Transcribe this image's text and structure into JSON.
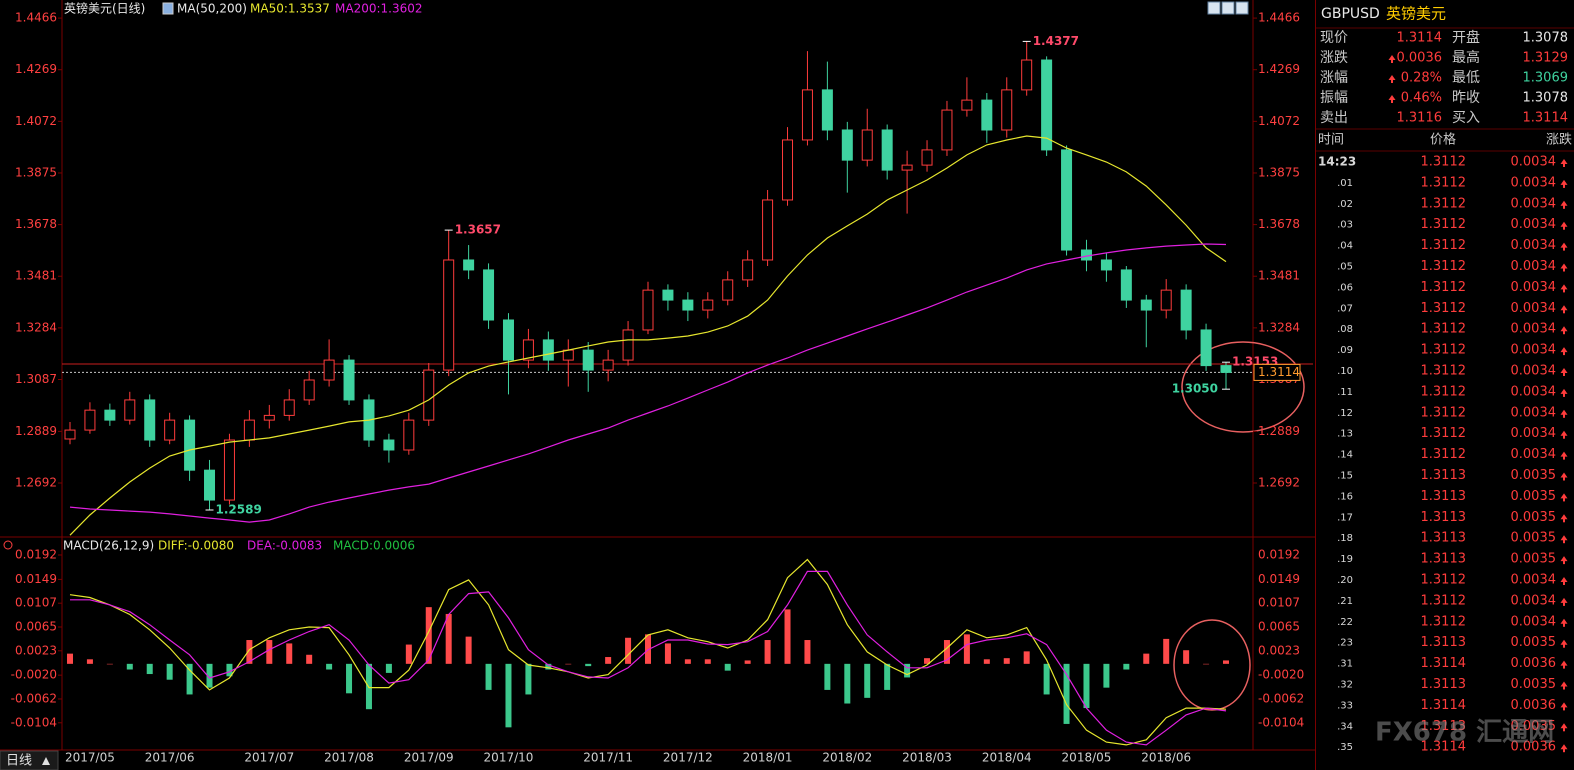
{
  "chart_data": [
    {
      "type": "candlestick",
      "title": "英镑美元(日线)",
      "indicator": "MA(50,200)",
      "categories": [
        null,
        "2017/05",
        null,
        null,
        null,
        "2017/06",
        null,
        null,
        null,
        null,
        "2017/07",
        null,
        null,
        null,
        "2017/08",
        null,
        null,
        null,
        "2017/09",
        null,
        null,
        null,
        "2017/10",
        null,
        null,
        null,
        null,
        "2017/11",
        null,
        null,
        null,
        "2017/12",
        null,
        null,
        null,
        "2018/01",
        null,
        null,
        null,
        "2018/02",
        null,
        null,
        null,
        "2018/03",
        null,
        null,
        null,
        "2018/04",
        null,
        null,
        null,
        "2018/05",
        null,
        null,
        null,
        "2018/06",
        null,
        null,
        null
      ],
      "open": [
        1.286,
        1.2894,
        1.297,
        1.2932,
        1.3009,
        1.2856,
        1.2932,
        1.2741,
        1.2627,
        1.2856,
        1.2932,
        1.295,
        1.3009,
        1.3085,
        1.3161,
        1.3009,
        1.2856,
        1.2818,
        1.2932,
        1.3123,
        1.3543,
        1.3505,
        1.3314,
        1.3161,
        1.3238,
        1.3161,
        1.3199,
        1.3123,
        1.3161,
        1.3276,
        1.3428,
        1.339,
        1.3352,
        1.339,
        1.3467,
        1.3543,
        1.3772,
        1.4001,
        1.4192,
        1.4039,
        1.3924,
        1.4039,
        1.3886,
        1.3905,
        1.3963,
        1.4115,
        1.4153,
        1.4039,
        1.4192,
        1.4306,
        1.3963,
        1.3581,
        1.3543,
        1.3505,
        1.339,
        1.3352,
        1.3428,
        1.3276,
        1.314
      ],
      "high": [
        1.2925,
        1.3,
        1.2995,
        1.304,
        1.303,
        1.296,
        1.295,
        1.278,
        1.288,
        1.297,
        1.299,
        1.305,
        1.312,
        1.324,
        1.318,
        1.303,
        1.288,
        1.296,
        1.315,
        1.3657,
        1.36,
        1.353,
        1.334,
        1.328,
        1.327,
        1.324,
        1.323,
        1.32,
        1.331,
        1.346,
        1.345,
        1.342,
        1.342,
        1.35,
        1.358,
        1.381,
        1.405,
        1.434,
        1.43,
        1.407,
        1.412,
        1.406,
        1.396,
        1.4,
        1.415,
        1.424,
        1.418,
        1.424,
        1.4377,
        1.432,
        1.398,
        1.362,
        1.357,
        1.352,
        1.341,
        1.347,
        1.345,
        1.33,
        1.3153
      ],
      "low": [
        1.284,
        1.288,
        1.291,
        1.2915,
        1.283,
        1.284,
        1.27,
        1.2589,
        1.261,
        1.283,
        1.29,
        1.293,
        1.299,
        1.306,
        1.299,
        1.283,
        1.277,
        1.28,
        1.291,
        1.31,
        1.347,
        1.328,
        1.303,
        1.313,
        1.312,
        1.306,
        1.304,
        1.308,
        1.314,
        1.326,
        1.335,
        1.331,
        1.332,
        1.337,
        1.344,
        1.352,
        1.375,
        1.398,
        1.4,
        1.38,
        1.39,
        1.385,
        1.372,
        1.388,
        1.394,
        1.409,
        1.399,
        1.401,
        1.417,
        1.394,
        1.356,
        1.35,
        1.346,
        1.336,
        1.321,
        1.332,
        1.324,
        1.312,
        1.305
      ],
      "close": [
        1.2894,
        1.297,
        1.2932,
        1.3009,
        1.2856,
        1.2932,
        1.2741,
        1.2627,
        1.2856,
        1.2932,
        1.295,
        1.3009,
        1.3085,
        1.3161,
        1.3009,
        1.2856,
        1.2818,
        1.2932,
        1.3123,
        1.3543,
        1.3505,
        1.3314,
        1.3161,
        1.3238,
        1.3161,
        1.3199,
        1.3123,
        1.3161,
        1.3276,
        1.3428,
        1.339,
        1.3352,
        1.339,
        1.3467,
        1.3543,
        1.3772,
        1.4001,
        1.4192,
        1.4039,
        1.3924,
        1.4039,
        1.3886,
        1.3905,
        1.3963,
        1.4115,
        1.4153,
        1.4039,
        1.4192,
        1.4306,
        1.3963,
        1.3581,
        1.3543,
        1.3505,
        1.339,
        1.3352,
        1.3428,
        1.3276,
        1.314,
        1.3114
      ],
      "high_labels": [
        null,
        null,
        null,
        null,
        null,
        null,
        null,
        null,
        null,
        null,
        null,
        null,
        null,
        null,
        null,
        null,
        null,
        null,
        null,
        "1.3657",
        null,
        null,
        null,
        null,
        null,
        null,
        null,
        null,
        null,
        null,
        null,
        null,
        null,
        null,
        null,
        null,
        null,
        null,
        null,
        null,
        null,
        null,
        null,
        null,
        null,
        null,
        null,
        null,
        "1.4377",
        null,
        null,
        null,
        null,
        null,
        null,
        null,
        null,
        null,
        "1.3153"
      ],
      "low_labels": [
        null,
        null,
        null,
        null,
        null,
        null,
        null,
        "1.2589",
        null,
        null,
        null,
        null,
        null,
        null,
        null,
        null,
        null,
        null,
        null,
        null,
        null,
        null,
        null,
        null,
        null,
        null,
        null,
        null,
        null,
        null,
        null,
        null,
        null,
        null,
        null,
        null,
        null,
        null,
        null,
        null,
        null,
        null,
        null,
        null,
        null,
        null,
        null,
        null,
        null,
        null,
        null,
        null,
        null,
        null,
        null,
        null,
        null,
        null,
        "1.3050"
      ],
      "last_label": "1.3114",
      "up_color": "#ff3c3c",
      "down_color": "#3fd3a0",
      "reference_line": {
        "value": 1.3146,
        "color": "#c81e1e"
      },
      "series": [
        {
          "name": "MA50:1.3537",
          "color": "#e6e62e",
          "values": [
            1.2493,
            1.257,
            1.2635,
            1.2696,
            1.2749,
            1.2795,
            1.2818,
            1.2833,
            1.2848,
            1.2856,
            1.2864,
            1.2879,
            1.2894,
            1.2909,
            1.2925,
            1.2932,
            1.2948,
            1.297,
            1.3009,
            1.3066,
            1.3112,
            1.3138,
            1.3154,
            1.3169,
            1.3184,
            1.3199,
            1.3215,
            1.323,
            1.3238,
            1.3238,
            1.3245,
            1.3253,
            1.3268,
            1.3291,
            1.3329,
            1.339,
            1.3482,
            1.3562,
            1.3627,
            1.3673,
            1.3718,
            1.3772,
            1.381,
            1.3848,
            1.3894,
            1.3944,
            1.3982,
            1.4001,
            1.4016,
            1.4008,
            1.397,
            1.3944,
            1.3917,
            1.3879,
            1.3825,
            1.3753,
            1.3676,
            1.3589,
            1.3537
          ]
        },
        {
          "name": "MA200:1.3602",
          "color": "#e020e0",
          "values": [
            1.26,
            1.2593,
            1.2589,
            1.2585,
            1.2581,
            1.2574,
            1.2566,
            1.2558,
            1.2551,
            1.2543,
            1.2551,
            1.2574,
            1.26,
            1.2619,
            1.2635,
            1.265,
            1.2665,
            1.2677,
            1.2688,
            1.2711,
            1.2734,
            1.2757,
            1.278,
            1.2803,
            1.2829,
            1.2856,
            1.2879,
            1.2902,
            1.2932,
            1.2959,
            1.2986,
            1.3016,
            1.3047,
            1.3077,
            1.3112,
            1.3142,
            1.3169,
            1.3199,
            1.3226,
            1.3253,
            1.328,
            1.3306,
            1.3333,
            1.336,
            1.339,
            1.3421,
            1.3447,
            1.3474,
            1.3505,
            1.3528,
            1.3543,
            1.3558,
            1.357,
            1.3581,
            1.3589,
            1.3596,
            1.36,
            1.3604,
            1.3602
          ]
        }
      ],
      "ylim": [
        1.2486,
        1.4535
      ],
      "yticks": [
        1.4466,
        1.4269,
        1.4072,
        1.3875,
        1.3678,
        1.3481,
        1.3284,
        1.3087,
        1.2889,
        1.2692
      ]
    },
    {
      "type": "macd",
      "title": "MACD(26,12,9)",
      "up_color": "#ff4a4a",
      "down_color": "#3cc88c",
      "series": [
        {
          "name": "DIFF:-0.0080",
          "color": "#e6e62e",
          "values": [
            0.0122,
            0.0117,
            0.0104,
            0.0087,
            0.006,
            0.0028,
            -0.0011,
            -0.0046,
            -0.0025,
            0.0025,
            0.0046,
            0.006,
            0.0065,
            0.0064,
            0.0016,
            -0.0042,
            -0.0042,
            -0.0011,
            0.0057,
            0.0131,
            0.0148,
            0.0104,
            0.0025,
            -0.0002,
            -0.0007,
            -0.0014,
            -0.0025,
            -0.0019,
            0.0016,
            0.0051,
            0.006,
            0.0046,
            0.0039,
            0.0028,
            0.0042,
            0.0078,
            0.0152,
            0.0184,
            0.014,
            0.0069,
            0.0021,
            -0.0002,
            -0.0019,
            -0.0002,
            0.0028,
            0.006,
            0.0046,
            0.0051,
            0.0064,
            0.0007,
            -0.0072,
            -0.0117,
            -0.0138,
            -0.0143,
            -0.0134,
            -0.0095,
            -0.0078,
            -0.0078,
            -0.008
          ]
        },
        {
          "name": "DEA:-0.0083",
          "color": "#e020e0",
          "values": [
            0.0113,
            0.0113,
            0.0104,
            0.0092,
            0.0069,
            0.0042,
            0.0016,
            -0.0025,
            -0.0014,
            0.0004,
            0.0025,
            0.0042,
            0.0057,
            0.0069,
            0.0042,
            -0.0002,
            -0.0034,
            -0.0028,
            0.0007,
            0.0087,
            0.0124,
            0.0127,
            0.0081,
            0.0025,
            -0.0002,
            -0.0014,
            -0.0023,
            -0.0025,
            -0.0007,
            0.0025,
            0.0042,
            0.0042,
            0.0035,
            0.0034,
            0.0039,
            0.0057,
            0.0104,
            0.0163,
            0.0163,
            0.0104,
            0.0051,
            0.0021,
            -0.0007,
            -0.0007,
            0.0007,
            0.0034,
            0.0042,
            0.0046,
            0.0053,
            0.0034,
            -0.0019,
            -0.0078,
            -0.0117,
            -0.0138,
            -0.0143,
            -0.0117,
            -0.009,
            -0.0078,
            -0.0083
          ]
        },
        {
          "name": "MACD:0.0006",
          "color": "#20c040",
          "values": [
            0.0018,
            0.0008,
            0,
            -0.001,
            -0.0018,
            -0.0028,
            -0.0054,
            -0.0042,
            -0.0022,
            0.0042,
            0.0042,
            0.0036,
            0.0016,
            -0.001,
            -0.0052,
            -0.008,
            -0.0016,
            0.0034,
            0.01,
            0.0088,
            0.0048,
            -0.0046,
            -0.0112,
            -0.0054,
            -0.001,
            0,
            -0.0004,
            0.0012,
            0.0046,
            0.0052,
            0.0036,
            0.0008,
            0.0008,
            -0.0012,
            0.0006,
            0.0042,
            0.0096,
            0.0042,
            -0.0046,
            -0.007,
            -0.006,
            -0.0046,
            -0.0024,
            0.001,
            0.0042,
            0.0052,
            0.0008,
            0.001,
            0.0022,
            -0.0054,
            -0.0106,
            -0.0078,
            -0.0042,
            -0.001,
            0.0018,
            0.0044,
            0.0024,
            0,
            0.0006
          ]
        }
      ],
      "ylim": [
        -0.0152,
        0.0222
      ],
      "yticks": [
        0.0192,
        0.0149,
        0.0107,
        0.0065,
        0.0023,
        {
          "value": -0.002,
          "label": "-0.0020"
        },
        -0.0062,
        -0.0104
      ]
    }
  ],
  "period_button": "日线",
  "watermark": "FX678 汇通网",
  "panel": {
    "symbol": "GBPUSD",
    "name": "英镑美元",
    "quote": [
      [
        "现价",
        "1.3114",
        "开盘",
        "1.3078"
      ],
      [
        "涨跌",
        "0.0036",
        "最高",
        "1.3129"
      ],
      [
        "涨幅",
        "0.28%",
        "最低",
        "1.3069"
      ],
      [
        "振幅",
        "0.46%",
        "昨收",
        "1.3078"
      ],
      [
        "卖出",
        "1.3116",
        "买入",
        "1.3114"
      ]
    ],
    "ticks_header": [
      "时间",
      "价格",
      "涨跌"
    ],
    "ticks": [
      [
        "14:23",
        "1.3112",
        "0.0034"
      ],
      [
        ".01",
        "1.3112",
        "0.0034"
      ],
      [
        ".02",
        "1.3112",
        "0.0034"
      ],
      [
        ".03",
        "1.3112",
        "0.0034"
      ],
      [
        ".04",
        "1.3112",
        "0.0034"
      ],
      [
        ".05",
        "1.3112",
        "0.0034"
      ],
      [
        ".06",
        "1.3112",
        "0.0034"
      ],
      [
        ".07",
        "1.3112",
        "0.0034"
      ],
      [
        ".08",
        "1.3112",
        "0.0034"
      ],
      [
        ".09",
        "1.3112",
        "0.0034"
      ],
      [
        ".10",
        "1.3112",
        "0.0034"
      ],
      [
        ".11",
        "1.3112",
        "0.0034"
      ],
      [
        ".12",
        "1.3112",
        "0.0034"
      ],
      [
        ".13",
        "1.3112",
        "0.0034"
      ],
      [
        ".14",
        "1.3112",
        "0.0034"
      ],
      [
        ".15",
        "1.3113",
        "0.0035"
      ],
      [
        ".16",
        "1.3113",
        "0.0035"
      ],
      [
        ".17",
        "1.3113",
        "0.0035"
      ],
      [
        ".18",
        "1.3113",
        "0.0035"
      ],
      [
        ".19",
        "1.3113",
        "0.0035"
      ],
      [
        ".20",
        "1.3112",
        "0.0034"
      ],
      [
        ".21",
        "1.3112",
        "0.0034"
      ],
      [
        ".22",
        "1.3112",
        "0.0034"
      ],
      [
        ".23",
        "1.3113",
        "0.0035"
      ],
      [
        ".31",
        "1.3114",
        "0.0036"
      ],
      [
        ".32",
        "1.3113",
        "0.0035"
      ],
      [
        ".33",
        "1.3114",
        "0.0036"
      ],
      [
        ".34",
        "1.3113",
        "0.0035"
      ],
      [
        ".35",
        "1.3114",
        "0.0036"
      ]
    ]
  }
}
